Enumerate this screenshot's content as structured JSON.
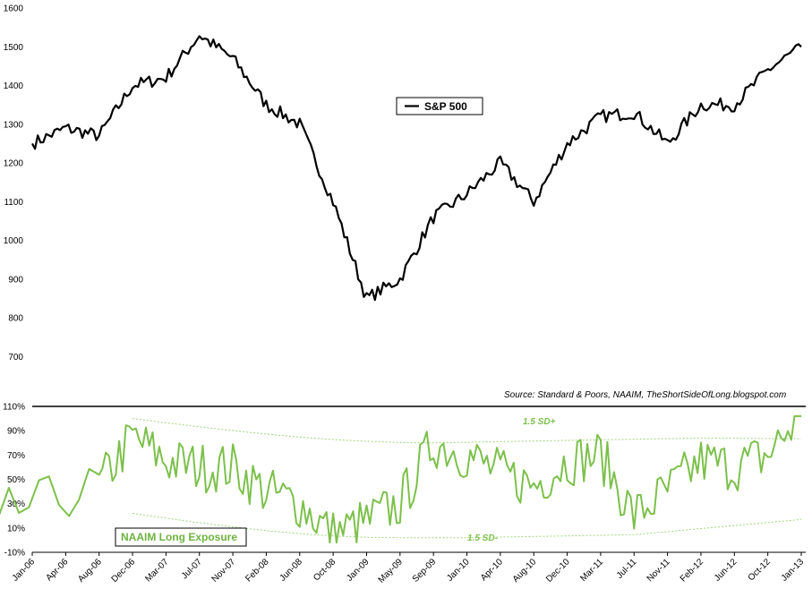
{
  "source_note": "Source: Standard & Poors, NAAIM, TheShortSideOfLong.blogspot.com",
  "colors": {
    "sp500": "#000000",
    "naaim": "#7cc04b",
    "bands": "#9fd47a"
  },
  "chart_data": [
    {
      "type": "line",
      "legend": "S&P 500",
      "legend_position": "center-right",
      "ylim": [
        650,
        1600
      ],
      "y_ticks": [
        "700",
        "800",
        "900",
        "1000",
        "1100",
        "1200",
        "1300",
        "1400",
        "1500",
        "1600"
      ],
      "series": [
        {
          "name": "S&P 500",
          "x": [
            "Jan-06",
            "Apr-06",
            "Aug-06",
            "Dec-06",
            "Mar-07",
            "Jul-07",
            "Nov-07",
            "Feb-08",
            "Jun-08",
            "Oct-08",
            "Jan-09",
            "May-09",
            "Sep-09",
            "Jan-10",
            "Apr-10",
            "Aug-10",
            "Dec-10",
            "Mar-11",
            "Jul-11",
            "Nov-11",
            "Feb-12",
            "Jun-12",
            "Oct-12",
            "Jan-13"
          ],
          "values": [
            1250,
            1290,
            1270,
            1400,
            1420,
            1530,
            1470,
            1350,
            1300,
            1100,
            850,
            900,
            1060,
            1120,
            1200,
            1100,
            1250,
            1320,
            1330,
            1250,
            1350,
            1350,
            1440,
            1500
          ]
        }
      ]
    },
    {
      "type": "line",
      "legend": "NAAIM Long Exposure",
      "legend_position": "bottom-left",
      "ylim": [
        -10,
        110
      ],
      "y_ticks": [
        "-10%",
        "10%",
        "30%",
        "50%",
        "70%",
        "90%",
        "110%"
      ],
      "x_ticks": [
        "Jan-06",
        "Apr-06",
        "Aug-06",
        "Dec-06",
        "Mar-07",
        "Jul-07",
        "Nov-07",
        "Feb-08",
        "Jun-08",
        "Oct-08",
        "Jan-09",
        "May-09",
        "Sep-09",
        "Jan-10",
        "Apr-10",
        "Aug-10",
        "Dec-10",
        "Mar-11",
        "Jul-11",
        "Nov-11",
        "Feb-12",
        "Jun-12",
        "Oct-12",
        "Jan-13"
      ],
      "band_labels": {
        "upper": "1.5 SD+",
        "lower": "1.5 SD-"
      },
      "series": [
        {
          "name": "NAAIM Long Exposure",
          "x": [
            "Jul-06",
            "Aug-06",
            "Dec-06",
            "Mar-07",
            "Jul-07",
            "Nov-07",
            "Feb-08",
            "Jun-08",
            "Oct-08",
            "Jan-09",
            "May-09",
            "Sep-09",
            "Jan-10",
            "Apr-10",
            "Aug-10",
            "Dec-10",
            "Mar-11",
            "Jul-11",
            "Nov-11",
            "Feb-12",
            "Jun-12",
            "Oct-12",
            "Jan-13"
          ],
          "values": [
            20,
            45,
            85,
            65,
            60,
            60,
            40,
            30,
            5,
            15,
            30,
            80,
            70,
            55,
            45,
            65,
            70,
            20,
            40,
            65,
            60,
            70,
            103
          ]
        }
      ]
    }
  ]
}
